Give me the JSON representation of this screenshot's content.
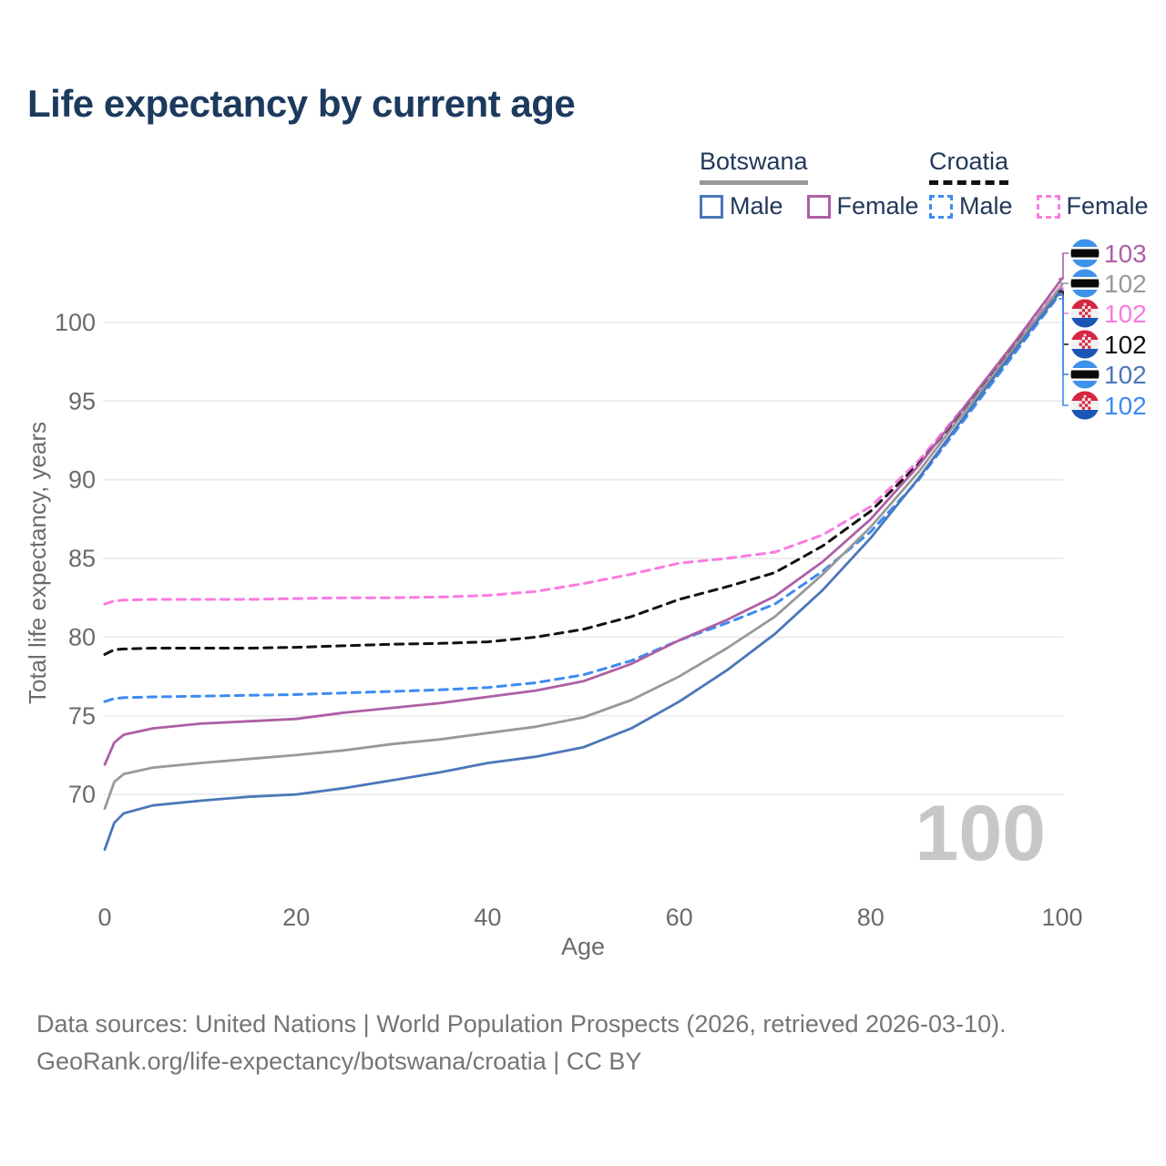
{
  "title": "Life expectancy by current age",
  "legend": {
    "groups": [
      {
        "country": "Botswana",
        "line_style": "solid",
        "country_line_color": "#999999",
        "items": [
          {
            "label": "Male",
            "color": "#4a77b9",
            "style": "solid"
          },
          {
            "label": "Female",
            "color": "#ae5fa5",
            "style": "solid"
          }
        ]
      },
      {
        "country": "Croatia",
        "line_style": "dashed",
        "country_line_color": "#111111",
        "items": [
          {
            "label": "Male",
            "color": "#3d8bf2",
            "style": "dashed"
          },
          {
            "label": "Female",
            "color": "#fb7ae1",
            "style": "dashed"
          }
        ]
      }
    ]
  },
  "chart_data": {
    "type": "line",
    "title": "Life expectancy by current age",
    "xlabel": "Age",
    "ylabel": "Total life expectancy, years",
    "x_ticks": [
      "0",
      "20",
      "40",
      "60",
      "80",
      "100"
    ],
    "x_tick_values": [
      0,
      20,
      40,
      60,
      80,
      100
    ],
    "y_ticks": [
      "70",
      "75",
      "80",
      "85",
      "90",
      "95",
      "100"
    ],
    "y_tick_values": [
      70,
      75,
      80,
      85,
      90,
      95,
      100
    ],
    "xlim": [
      0,
      100
    ],
    "ylim": [
      66,
      104
    ],
    "grid": "horizontal",
    "legend_position": "top-right",
    "x": [
      0,
      1,
      2,
      5,
      10,
      15,
      20,
      25,
      30,
      35,
      40,
      45,
      50,
      55,
      60,
      65,
      70,
      75,
      80,
      85,
      90,
      95,
      100
    ],
    "series": [
      {
        "name": "Croatia Female",
        "country": "Croatia",
        "sex": "Female",
        "style": "dashed",
        "color": "#fb7ae1",
        "values": [
          82.1,
          82.3,
          82.35,
          82.4,
          82.4,
          82.4,
          82.45,
          82.5,
          82.5,
          82.55,
          82.65,
          82.9,
          83.4,
          84.0,
          84.7,
          85.0,
          85.4,
          86.5,
          88.3,
          91.2,
          94.8,
          98.7,
          102.4
        ]
      },
      {
        "name": "Croatia",
        "country": "Croatia",
        "sex": "Both",
        "style": "dashed",
        "color": "#111111",
        "values": [
          78.9,
          79.2,
          79.25,
          79.3,
          79.3,
          79.3,
          79.35,
          79.45,
          79.55,
          79.6,
          79.7,
          80.0,
          80.5,
          81.3,
          82.4,
          83.2,
          84.1,
          85.8,
          88.0,
          91.0,
          94.6,
          98.5,
          102.2
        ]
      },
      {
        "name": "Croatia Male",
        "country": "Croatia",
        "sex": "Male",
        "style": "dashed",
        "color": "#3d8bf2",
        "values": [
          75.9,
          76.1,
          76.15,
          76.2,
          76.25,
          76.3,
          76.35,
          76.45,
          76.55,
          76.65,
          76.8,
          77.1,
          77.6,
          78.5,
          79.8,
          80.9,
          82.1,
          84.2,
          86.7,
          90.0,
          94.0,
          98.0,
          102.0
        ]
      },
      {
        "name": "Botswana Female",
        "country": "Botswana",
        "sex": "Female",
        "style": "solid",
        "color": "#ae5fa5",
        "values": [
          71.9,
          73.3,
          73.8,
          74.2,
          74.5,
          74.65,
          74.8,
          75.2,
          75.5,
          75.8,
          76.2,
          76.6,
          77.2,
          78.3,
          79.8,
          81.1,
          82.6,
          84.8,
          87.5,
          90.9,
          94.8,
          98.7,
          102.8
        ]
      },
      {
        "name": "Botswana",
        "country": "Botswana",
        "sex": "Both",
        "style": "solid",
        "color": "#999999",
        "values": [
          69.1,
          70.8,
          71.3,
          71.7,
          72.0,
          72.25,
          72.5,
          72.8,
          73.2,
          73.5,
          73.9,
          74.3,
          74.9,
          76.0,
          77.5,
          79.3,
          81.3,
          84.0,
          87.0,
          90.5,
          94.5,
          98.4,
          102.4
        ]
      },
      {
        "name": "Botswana Male",
        "country": "Botswana",
        "sex": "Male",
        "style": "solid",
        "color": "#4a77b9",
        "values": [
          66.5,
          68.2,
          68.8,
          69.3,
          69.6,
          69.85,
          70.0,
          70.4,
          70.9,
          71.4,
          72.0,
          72.4,
          73.0,
          74.2,
          75.9,
          77.9,
          80.2,
          83.0,
          86.3,
          90.1,
          94.2,
          98.2,
          102.1
        ]
      }
    ]
  },
  "annotations": {
    "watermark": "100",
    "end_labels": [
      {
        "flag": "botswana",
        "series": "Botswana Female",
        "value": "103",
        "color": "#ae5fa5"
      },
      {
        "flag": "botswana",
        "series": "Botswana",
        "value": "102",
        "color": "#999999"
      },
      {
        "flag": "croatia",
        "series": "Croatia Female",
        "value": "102",
        "color": "#fb7ae1"
      },
      {
        "flag": "croatia",
        "series": "Croatia",
        "value": "102",
        "color": "#111111"
      },
      {
        "flag": "botswana",
        "series": "Botswana Male",
        "value": "102",
        "color": "#4a77b9"
      },
      {
        "flag": "croatia",
        "series": "Croatia Male",
        "value": "102",
        "color": "#3d8bf2"
      }
    ]
  },
  "footer": {
    "line1": "Data sources: United Nations | World Population Prospects (2026, retrieved 2026-03-10).",
    "line2": "GeoRank.org/life-expectancy/botswana/croatia | CC BY"
  },
  "colors": {
    "title": "#1c3a5e",
    "axis_text": "#6b6b6b",
    "gridline": "#e9e9e9",
    "watermark": "#c7c7c7",
    "footer": "#757575"
  }
}
